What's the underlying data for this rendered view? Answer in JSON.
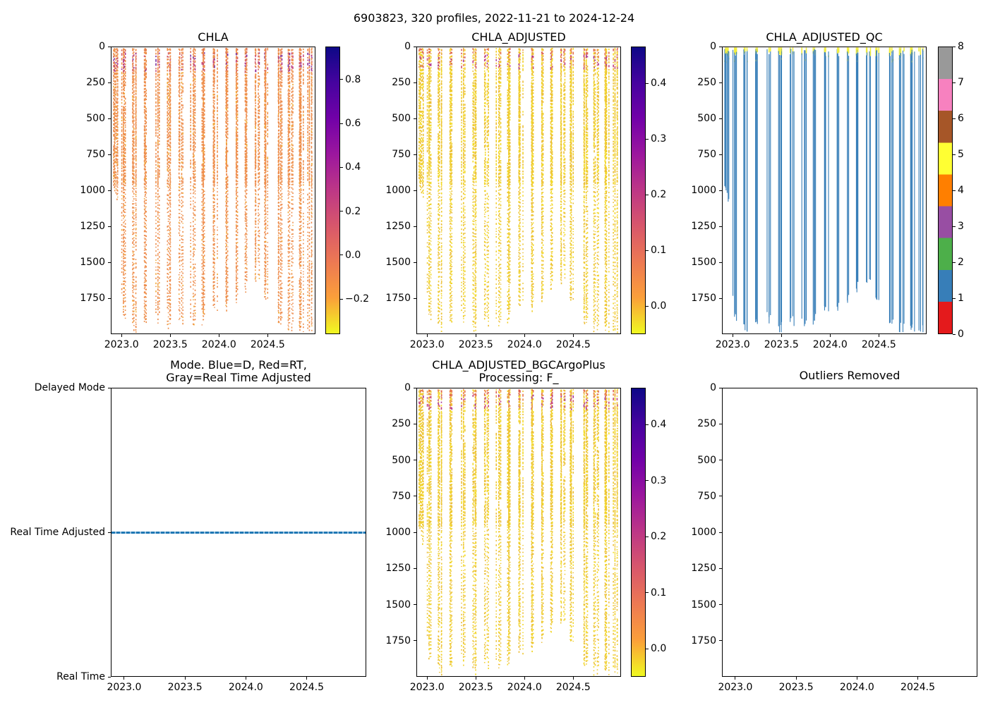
{
  "figure": {
    "suptitle": "6903823, 320 profiles, 2022-11-21 to 2024-12-24",
    "background": "#ffffff",
    "text_color": "#000000"
  },
  "colormaps": {
    "plasma_r_top_to_bottom": [
      "#0d0887",
      "#46039f",
      "#7201a8",
      "#9c179e",
      "#bd3786",
      "#d8576b",
      "#ed7953",
      "#fb9f3a",
      "#f0f921"
    ]
  },
  "chart_data": [
    {
      "id": "chla",
      "type": "scatter",
      "title": "CHLA",
      "x_range": [
        2022.89,
        2024.99
      ],
      "x_ticks": [
        {
          "v": 2023.0,
          "label": "2023.0"
        },
        {
          "v": 2023.5,
          "label": "2023.5"
        },
        {
          "v": 2024.0,
          "label": "2024.0"
        },
        {
          "v": 2024.5,
          "label": "2024.5"
        }
      ],
      "y_range": [
        0,
        2000
      ],
      "y_inverted": true,
      "y_ticks": [
        {
          "v": 0,
          "label": "0"
        },
        {
          "v": 250,
          "label": "250"
        },
        {
          "v": 500,
          "label": "500"
        },
        {
          "v": 750,
          "label": "750"
        },
        {
          "v": 1000,
          "label": "1000"
        },
        {
          "v": 1250,
          "label": "1250"
        },
        {
          "v": 1500,
          "label": "1500"
        },
        {
          "v": 1750,
          "label": "1750"
        }
      ],
      "colorbar": {
        "colormap": "plasma_r",
        "range": [
          -0.36,
          0.95
        ],
        "ticks": [
          {
            "v": 0.8,
            "label": "0.8"
          },
          {
            "v": 0.6,
            "label": "0.6"
          },
          {
            "v": 0.4,
            "label": "0.4"
          },
          {
            "v": 0.2,
            "label": "0.2"
          },
          {
            "v": 0.0,
            "label": "0.0"
          },
          {
            "v": -0.2,
            "label": "−0.2"
          }
        ]
      },
      "palette": {
        "shallow_max": 35,
        "shallow_p": 0.2,
        "shallow_accent": [
          "#db6a50"
        ],
        "base": [
          "#ee8a4d",
          "#ef914b",
          "#ec8c49"
        ],
        "band_range": [
          35,
          165
        ],
        "band": [
          "#b23489",
          "#952d97",
          "#c84b7b",
          "#7b2fa0"
        ],
        "band_red": [
          "#d55f66"
        ],
        "deep_accent": [
          "#f2a93a"
        ]
      }
    },
    {
      "id": "chla_adjusted",
      "type": "scatter",
      "title": "CHLA_ADJUSTED",
      "x_range": [
        2022.89,
        2024.99
      ],
      "x_ticks": [
        {
          "v": 2023.0,
          "label": "2023.0"
        },
        {
          "v": 2023.5,
          "label": "2023.5"
        },
        {
          "v": 2024.0,
          "label": "2024.0"
        },
        {
          "v": 2024.5,
          "label": "2024.5"
        }
      ],
      "y_range": [
        0,
        2000
      ],
      "y_inverted": true,
      "y_ticks": [
        {
          "v": 0,
          "label": "0"
        },
        {
          "v": 250,
          "label": "250"
        },
        {
          "v": 500,
          "label": "500"
        },
        {
          "v": 750,
          "label": "750"
        },
        {
          "v": 1000,
          "label": "1000"
        },
        {
          "v": 1250,
          "label": "1250"
        },
        {
          "v": 1500,
          "label": "1500"
        },
        {
          "v": 1750,
          "label": "1750"
        }
      ],
      "colorbar": {
        "colormap": "plasma_r",
        "range": [
          -0.05,
          0.466
        ],
        "ticks": [
          {
            "v": 0.4,
            "label": "0.4"
          },
          {
            "v": 0.3,
            "label": "0.3"
          },
          {
            "v": 0.2,
            "label": "0.2"
          },
          {
            "v": 0.1,
            "label": "0.1"
          },
          {
            "v": 0.0,
            "label": "0.0"
          }
        ]
      },
      "palette": {
        "shallow_max": 40,
        "shallow_p": 0.5,
        "shallow_accent": [
          "#e4704c",
          "#ec8c43",
          "#dd5f53"
        ],
        "base": [
          "#eec72f",
          "#f0cf2b",
          "#ecbd34",
          "#f3da27"
        ],
        "band_range": [
          40,
          140
        ],
        "band": [
          "#c23d7e",
          "#a93391",
          "#d25468"
        ],
        "band_red": [
          "#e98b43"
        ],
        "deep_accent": [
          "#eabf37"
        ]
      }
    },
    {
      "id": "chla_adjusted_qc",
      "type": "qc",
      "title": "CHLA_ADJUSTED_QC",
      "x_range": [
        2022.89,
        2024.99
      ],
      "x_ticks": [
        {
          "v": 2023.0,
          "label": "2023.0"
        },
        {
          "v": 2023.5,
          "label": "2023.5"
        },
        {
          "v": 2024.0,
          "label": "2024.0"
        },
        {
          "v": 2024.5,
          "label": "2024.5"
        }
      ],
      "y_range": [
        0,
        2000
      ],
      "y_inverted": true,
      "y_ticks": [
        {
          "v": 0,
          "label": "0"
        },
        {
          "v": 250,
          "label": "250"
        },
        {
          "v": 500,
          "label": "500"
        },
        {
          "v": 750,
          "label": "750"
        },
        {
          "v": 1000,
          "label": "1000"
        },
        {
          "v": 1250,
          "label": "1250"
        },
        {
          "v": 1500,
          "label": "1500"
        },
        {
          "v": 1750,
          "label": "1750"
        }
      ],
      "line_color": "#377eb8",
      "cap_color": "#f2ee3f",
      "colorbar": {
        "colormap": "Set1",
        "range": [
          0,
          8
        ],
        "ticks": [
          {
            "v": 8,
            "label": "8"
          },
          {
            "v": 7,
            "label": "7"
          },
          {
            "v": 6,
            "label": "6"
          },
          {
            "v": 5,
            "label": "5"
          },
          {
            "v": 4,
            "label": "4"
          },
          {
            "v": 3,
            "label": "3"
          },
          {
            "v": 2,
            "label": "2"
          },
          {
            "v": 1,
            "label": "1"
          },
          {
            "v": 0,
            "label": "0"
          }
        ],
        "colors_bottom_to_top": [
          "#e41a1c",
          "#377eb8",
          "#4daf4a",
          "#984ea3",
          "#ff7f00",
          "#ffff33",
          "#a65628",
          "#f781bf",
          "#999999"
        ]
      }
    },
    {
      "id": "mode",
      "type": "category-line",
      "title_lines": [
        "Mode. Blue=D, Red=RT,",
        "Gray=Real Time Adjusted"
      ],
      "x_range": [
        2022.89,
        2024.99
      ],
      "x_ticks": [
        {
          "v": 2023.0,
          "label": "2023.0"
        },
        {
          "v": 2023.5,
          "label": "2023.5"
        },
        {
          "v": 2024.0,
          "label": "2024.0"
        },
        {
          "v": 2024.5,
          "label": "2024.5"
        }
      ],
      "y_categories": [
        {
          "v": 0,
          "label": "Real Time"
        },
        {
          "v": 1,
          "label": "Real Time Adjusted"
        },
        {
          "v": 2,
          "label": "Delayed Mode"
        }
      ],
      "series": {
        "name": "mode",
        "value": "Real Time Adjusted",
        "at": 1,
        "color": "#1f77b4",
        "style": "dashed"
      }
    },
    {
      "id": "bgc",
      "type": "scatter",
      "title_lines": [
        "CHLA_ADJUSTED_BGCArgoPlus",
        "Processing: F_"
      ],
      "x_range": [
        2022.89,
        2024.99
      ],
      "x_ticks": [
        {
          "v": 2023.0,
          "label": "2023.0"
        },
        {
          "v": 2023.5,
          "label": "2023.5"
        },
        {
          "v": 2024.0,
          "label": "2024.0"
        },
        {
          "v": 2024.5,
          "label": "2024.5"
        }
      ],
      "y_range": [
        0,
        2000
      ],
      "y_inverted": true,
      "y_ticks": [
        {
          "v": 0,
          "label": "0"
        },
        {
          "v": 250,
          "label": "250"
        },
        {
          "v": 500,
          "label": "500"
        },
        {
          "v": 750,
          "label": "750"
        },
        {
          "v": 1000,
          "label": "1000"
        },
        {
          "v": 1250,
          "label": "1250"
        },
        {
          "v": 1500,
          "label": "1500"
        },
        {
          "v": 1750,
          "label": "1750"
        }
      ],
      "colorbar": {
        "colormap": "plasma_r",
        "range": [
          -0.05,
          0.466
        ],
        "ticks": [
          {
            "v": 0.4,
            "label": "0.4"
          },
          {
            "v": 0.3,
            "label": "0.3"
          },
          {
            "v": 0.2,
            "label": "0.2"
          },
          {
            "v": 0.1,
            "label": "0.1"
          },
          {
            "v": 0.0,
            "label": "0.0"
          }
        ]
      },
      "palette": {
        "shallow_max": 40,
        "shallow_p": 0.5,
        "shallow_accent": [
          "#e4704c",
          "#ec8c43",
          "#dd5f53"
        ],
        "base": [
          "#eec72f",
          "#f0cf2b",
          "#ecbd34",
          "#f3da27"
        ],
        "band_range": [
          40,
          140
        ],
        "band": [
          "#c23d7e",
          "#a93391",
          "#d25468"
        ],
        "band_red": [
          "#e98b43"
        ],
        "deep_accent": [
          "#eabf37"
        ]
      }
    },
    {
      "id": "outliers",
      "type": "empty",
      "title": "Outliers Removed",
      "x_range": [
        2022.89,
        2024.99
      ],
      "x_ticks": [
        {
          "v": 2023.0,
          "label": "2023.0"
        },
        {
          "v": 2023.5,
          "label": "2023.5"
        },
        {
          "v": 2024.0,
          "label": "2024.0"
        },
        {
          "v": 2024.5,
          "label": "2024.5"
        }
      ],
      "y_range": [
        0,
        2000
      ],
      "y_inverted": true,
      "y_ticks": [
        {
          "v": 0,
          "label": "0"
        },
        {
          "v": 250,
          "label": "250"
        },
        {
          "v": 500,
          "label": "500"
        },
        {
          "v": 750,
          "label": "750"
        },
        {
          "v": 1000,
          "label": "1000"
        },
        {
          "v": 1250,
          "label": "1250"
        },
        {
          "v": 1500,
          "label": "1500"
        },
        {
          "v": 1750,
          "label": "1750"
        }
      ]
    }
  ],
  "profile_model": {
    "n_profiles": 320,
    "time_span": [
      2022.89,
      2024.99
    ],
    "cluster_centers": [
      2022.93,
      2023.02,
      2023.13,
      2023.25,
      2023.37,
      2023.49,
      2023.61,
      2023.73,
      2023.85,
      2023.96,
      2024.07,
      2024.18,
      2024.29,
      2024.4,
      2024.48,
      2024.63,
      2024.74,
      2024.85,
      2024.94
    ],
    "lines_per_cluster": [
      4,
      6
    ],
    "surface_start_depth": [
      3,
      16
    ],
    "depth_envelope": [
      [
        2022.89,
        1000
      ],
      [
        2022.97,
        1050
      ],
      [
        2023.0,
        1870
      ],
      [
        2023.06,
        1975
      ],
      [
        2023.22,
        1950
      ],
      [
        2023.32,
        1845
      ],
      [
        2023.44,
        1970
      ],
      [
        2023.56,
        1955
      ],
      [
        2023.67,
        1885
      ],
      [
        2023.79,
        1950
      ],
      [
        2023.89,
        1830
      ],
      [
        2023.98,
        1865
      ],
      [
        2024.09,
        1800
      ],
      [
        2024.19,
        1765
      ],
      [
        2024.3,
        1665
      ],
      [
        2024.41,
        1590
      ],
      [
        2024.49,
        1755
      ],
      [
        2024.63,
        1925
      ],
      [
        2024.76,
        1960
      ],
      [
        2024.99,
        1980
      ]
    ]
  }
}
